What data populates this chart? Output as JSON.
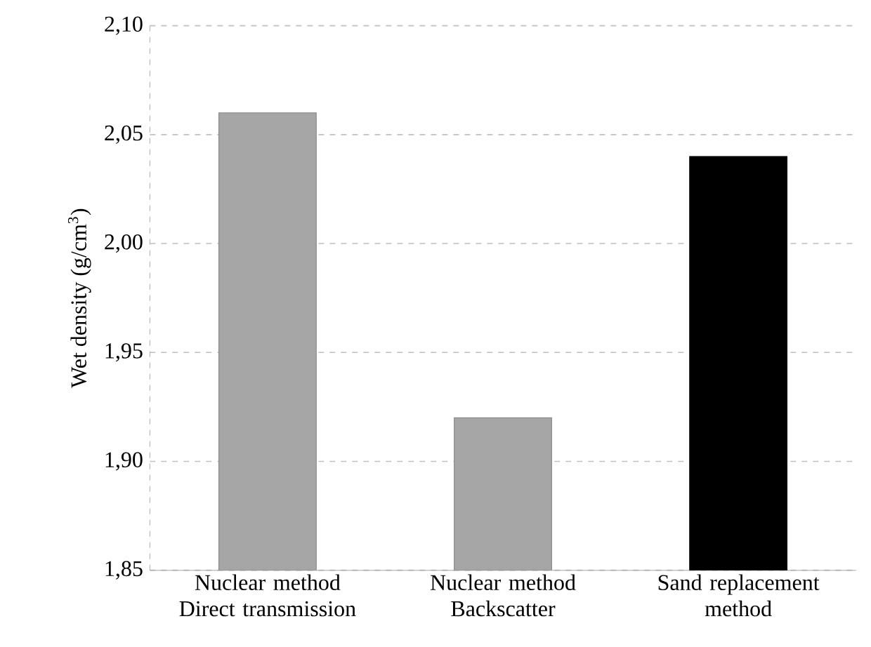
{
  "chart_data": {
    "type": "bar",
    "ylabel": "Wet density (g/cm$^{3}$)",
    "categories": [
      "Nuclear method Direct transmission",
      "Nuclear method Backscatter",
      "Sand replacement method"
    ],
    "values": [
      2.06,
      1.92,
      2.04
    ],
    "colors": [
      "#a6a6a6",
      "#a6a6a6",
      "#000000"
    ],
    "ylim": [
      1.85,
      2.1
    ],
    "yticks": [
      {
        "value": 1.85,
        "label": "1,85"
      },
      {
        "value": 1.9,
        "label": "1,90"
      },
      {
        "value": 1.95,
        "label": "1,95"
      },
      {
        "value": 2.0,
        "label": "2,00"
      },
      {
        "value": 2.05,
        "label": "2,05"
      },
      {
        "value": 2.1,
        "label": "2,10"
      }
    ],
    "grid": "y"
  }
}
